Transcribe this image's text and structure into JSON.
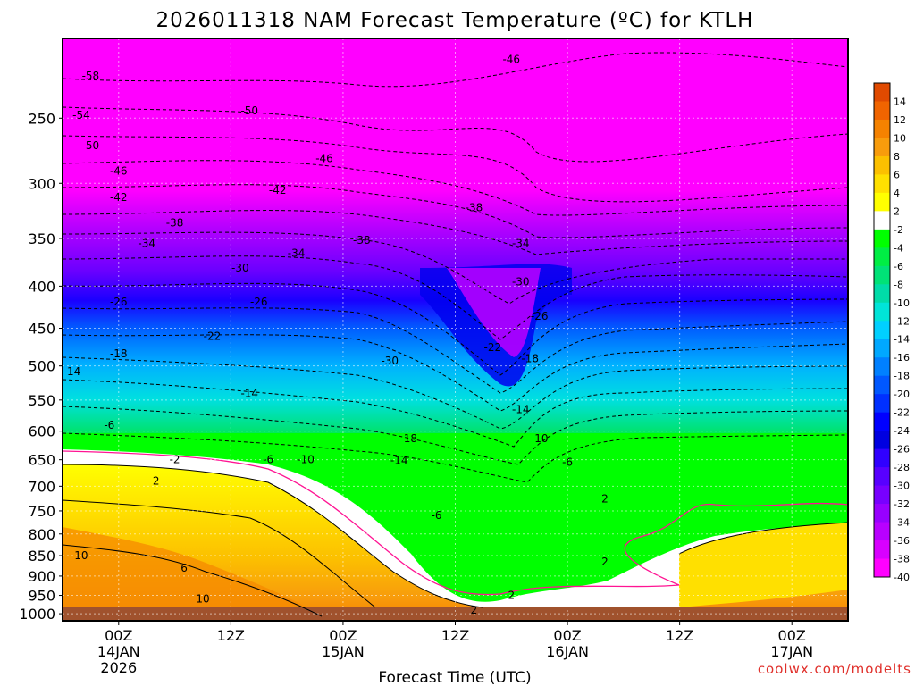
{
  "chart_data": {
    "type": "heatmap",
    "title": "2026011318 NAM Forecast Temperature (ºC) for KTLH",
    "xlabel": "Forecast Time (UTC)",
    "ylabel": "",
    "credit": "coolwx.com/modelts",
    "x_ticks": [
      {
        "hours": 6,
        "label": "00Z",
        "sub1": "14JAN",
        "sub2": "2026"
      },
      {
        "hours": 18,
        "label": "12Z",
        "sub1": "",
        "sub2": ""
      },
      {
        "hours": 30,
        "label": "00Z",
        "sub1": "15JAN",
        "sub2": ""
      },
      {
        "hours": 42,
        "label": "12Z",
        "sub1": "",
        "sub2": ""
      },
      {
        "hours": 54,
        "label": "00Z",
        "sub1": "16JAN",
        "sub2": ""
      },
      {
        "hours": 66,
        "label": "12Z",
        "sub1": "",
        "sub2": ""
      },
      {
        "hours": 78,
        "label": "00Z",
        "sub1": "17JAN",
        "sub2": ""
      }
    ],
    "x_range_hours_from_init": [
      0,
      84
    ],
    "y_pressure_levels_hpa": [
      250,
      300,
      350,
      400,
      450,
      500,
      550,
      600,
      650,
      700,
      750,
      800,
      850,
      900,
      950,
      1000
    ],
    "y_range_hpa": [
      200,
      1020
    ],
    "y_scale": "log-pressure",
    "grid": true,
    "colorbar": {
      "labels": [
        "14",
        "12",
        "10",
        "8",
        "6",
        "4",
        "2",
        "-2",
        "-4",
        "-6",
        "-8",
        "-10",
        "-12",
        "-14",
        "-16",
        "-18",
        "-20",
        "-22",
        "-24",
        "-26",
        "-28",
        "-30",
        "-32",
        "-34",
        "-36",
        "-38",
        "-40"
      ],
      "colors": [
        "#e04a00",
        "#f06400",
        "#f58200",
        "#f89c0c",
        "#fcc000",
        "#ffe000",
        "#ffff00",
        "#ffffff",
        "#00ff00",
        "#00ee44",
        "#00e277",
        "#00dca8",
        "#00e4d8",
        "#00d0ff",
        "#00a8ff",
        "#0080ff",
        "#0058ff",
        "#0030ff",
        "#0000ff",
        "#0000e0",
        "#3000ff",
        "#5800ff",
        "#7800ff",
        "#9800ff",
        "#b800ff",
        "#d800ff",
        "#ff00ff"
      ]
    },
    "contour_labels": [
      {
        "v": "-58",
        "h": 3,
        "p": 222
      },
      {
        "v": "-54",
        "h": 2,
        "p": 248
      },
      {
        "v": "-50",
        "h": 3,
        "p": 270
      },
      {
        "v": "-46",
        "h": 6,
        "p": 290
      },
      {
        "v": "-42",
        "h": 6,
        "p": 312
      },
      {
        "v": "-38",
        "h": 12,
        "p": 335
      },
      {
        "v": "-34",
        "h": 9,
        "p": 355
      },
      {
        "v": "-30",
        "h": 19,
        "p": 380
      },
      {
        "v": "-26",
        "h": 6,
        "p": 418
      },
      {
        "v": "-26",
        "h": 21,
        "p": 418
      },
      {
        "v": "-22",
        "h": 16,
        "p": 460
      },
      {
        "v": "-18",
        "h": 6,
        "p": 483
      },
      {
        "v": "-14",
        "h": 1,
        "p": 508
      },
      {
        "v": "-14",
        "h": 20,
        "p": 540
      },
      {
        "v": "-6",
        "h": 5,
        "p": 590
      },
      {
        "v": "-2",
        "h": 12,
        "p": 650
      },
      {
        "v": "2",
        "h": 10,
        "p": 690
      },
      {
        "v": "-6",
        "h": 22,
        "p": 650
      },
      {
        "v": "-10",
        "h": 26,
        "p": 650
      },
      {
        "v": "-50",
        "h": 20,
        "p": 245
      },
      {
        "v": "-46",
        "h": 28,
        "p": 280
      },
      {
        "v": "-42",
        "h": 23,
        "p": 306
      },
      {
        "v": "-34",
        "h": 25,
        "p": 365
      },
      {
        "v": "-38",
        "h": 32,
        "p": 352
      },
      {
        "v": "-30",
        "h": 35,
        "p": 493
      },
      {
        "v": "-18",
        "h": 37,
        "p": 613
      },
      {
        "v": "-14",
        "h": 36,
        "p": 651
      },
      {
        "v": "-6",
        "h": 40,
        "p": 760
      },
      {
        "v": "-46",
        "h": 48,
        "p": 212
      },
      {
        "v": "-38",
        "h": 44,
        "p": 321
      },
      {
        "v": "-34",
        "h": 49,
        "p": 355
      },
      {
        "v": "-30",
        "h": 49,
        "p": 395
      },
      {
        "v": "-26",
        "h": 51,
        "p": 435
      },
      {
        "v": "-22",
        "h": 46,
        "p": 475
      },
      {
        "v": "-18",
        "h": 50,
        "p": 490
      },
      {
        "v": "-14",
        "h": 49,
        "p": 565
      },
      {
        "v": "-10",
        "h": 51,
        "p": 613
      },
      {
        "v": "-6",
        "h": 54,
        "p": 655
      },
      {
        "v": "2",
        "h": 58,
        "p": 725
      },
      {
        "v": "2",
        "h": 48,
        "p": 950
      },
      {
        "v": "2",
        "h": 58,
        "p": 865
      },
      {
        "v": "2",
        "h": 44,
        "p": 990
      },
      {
        "v": "6",
        "h": 13,
        "p": 880
      },
      {
        "v": "10",
        "h": 2,
        "p": 850
      },
      {
        "v": "10",
        "h": 15,
        "p": 960
      }
    ]
  }
}
